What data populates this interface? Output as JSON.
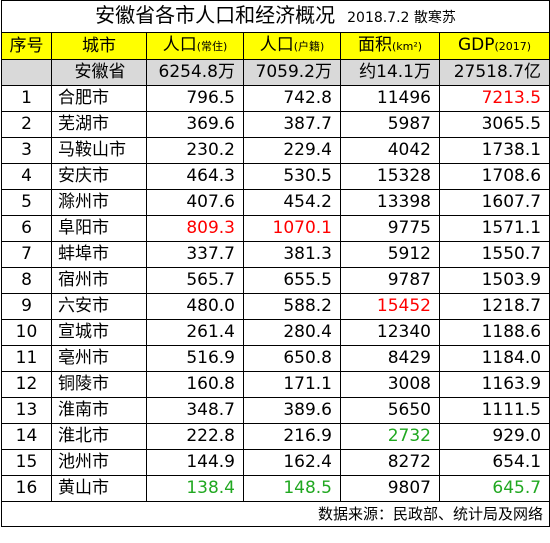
{
  "title": "安徽省各市人口和经济概况",
  "date": "2018.7.2",
  "author": "散寒苏",
  "headers": {
    "index": "序号",
    "city": "城市",
    "pop_res": "人口",
    "pop_res_note": "(常住)",
    "pop_reg": "人口",
    "pop_reg_note": "(户籍)",
    "area": "面积",
    "area_note": "(km²)",
    "gdp": "GDP",
    "gdp_note": "(2017)"
  },
  "summary": {
    "name": "安徽省",
    "pop_res": "6254.8万",
    "pop_reg": "7059.2万",
    "area": "约14.1万",
    "gdp": "27518.7亿"
  },
  "rows": [
    {
      "idx": "1",
      "city": "合肥市",
      "pop_res": "796.5",
      "pop_reg": "742.8",
      "area": "11496",
      "gdp": "7213.5"
    },
    {
      "idx": "2",
      "city": "芜湖市",
      "pop_res": "369.6",
      "pop_reg": "387.7",
      "area": "5987",
      "gdp": "3065.5"
    },
    {
      "idx": "3",
      "city": "马鞍山市",
      "pop_res": "230.2",
      "pop_reg": "229.4",
      "area": "4042",
      "gdp": "1738.1"
    },
    {
      "idx": "4",
      "city": "安庆市",
      "pop_res": "464.3",
      "pop_reg": "530.5",
      "area": "15328",
      "gdp": "1708.6"
    },
    {
      "idx": "5",
      "city": "滁州市",
      "pop_res": "407.6",
      "pop_reg": "454.2",
      "area": "13398",
      "gdp": "1607.7"
    },
    {
      "idx": "6",
      "city": "阜阳市",
      "pop_res": "809.3",
      "pop_reg": "1070.1",
      "area": "9775",
      "gdp": "1571.1"
    },
    {
      "idx": "7",
      "city": "蚌埠市",
      "pop_res": "337.7",
      "pop_reg": "381.3",
      "area": "5912",
      "gdp": "1550.7"
    },
    {
      "idx": "8",
      "city": "宿州市",
      "pop_res": "565.7",
      "pop_reg": "655.5",
      "area": "9787",
      "gdp": "1503.9"
    },
    {
      "idx": "9",
      "city": "六安市",
      "pop_res": "480.0",
      "pop_reg": "588.2",
      "area": "15452",
      "gdp": "1218.7"
    },
    {
      "idx": "10",
      "city": "宣城市",
      "pop_res": "261.4",
      "pop_reg": "280.4",
      "area": "12340",
      "gdp": "1188.6"
    },
    {
      "idx": "11",
      "city": "亳州市",
      "pop_res": "516.9",
      "pop_reg": "650.8",
      "area": "8429",
      "gdp": "1184.0"
    },
    {
      "idx": "12",
      "city": "铜陵市",
      "pop_res": "160.8",
      "pop_reg": "171.1",
      "area": "3008",
      "gdp": "1163.9"
    },
    {
      "idx": "13",
      "city": "淮南市",
      "pop_res": "348.7",
      "pop_reg": "389.6",
      "area": "5650",
      "gdp": "1111.5"
    },
    {
      "idx": "14",
      "city": "淮北市",
      "pop_res": "222.8",
      "pop_reg": "216.9",
      "area": "2732",
      "gdp": "929.0"
    },
    {
      "idx": "15",
      "city": "池州市",
      "pop_res": "144.9",
      "pop_reg": "162.4",
      "area": "8272",
      "gdp": "654.1"
    },
    {
      "idx": "16",
      "city": "黄山市",
      "pop_res": "138.4",
      "pop_reg": "148.5",
      "area": "9807",
      "gdp": "645.7"
    }
  ],
  "footer": "数据来源：民政部、统计局及网络",
  "colors": {
    "header_bg": "#ffff00",
    "summary_bg": "#d9d9d9",
    "max_red": "#ff0000",
    "min_green": "#21a821"
  }
}
